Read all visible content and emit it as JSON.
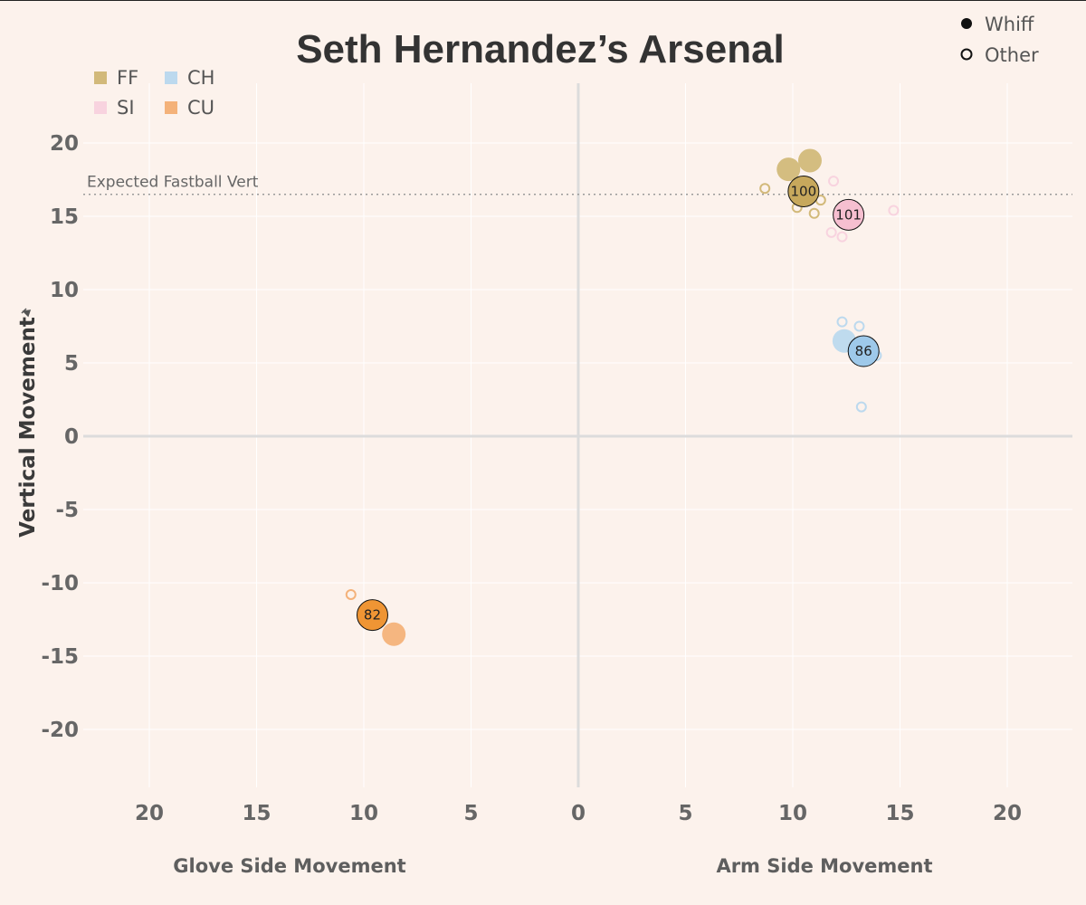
{
  "chart_data": {
    "type": "scatter",
    "title": "Seth Hernandez’s Arsenal",
    "ylabel": "Vertical Movement",
    "xlabel_left": "Glove Side Movement",
    "xlabel_right": "Arm Side Movement",
    "xlim": [
      -23,
      23
    ],
    "ylim": [
      -24,
      24
    ],
    "x_ticks": [
      -20,
      -15,
      -10,
      -5,
      0,
      5,
      10,
      15,
      20
    ],
    "x_tick_labels": [
      "20",
      "15",
      "10",
      "5",
      "0",
      "5",
      "10",
      "15",
      "20"
    ],
    "y_ticks": [
      20,
      15,
      10,
      5,
      0,
      -5,
      -10,
      -15,
      -20
    ],
    "y_tick_labels": [
      "20",
      "15",
      "10",
      "5",
      "0",
      "-5",
      "-10",
      "-15",
      "-20"
    ],
    "grid": true,
    "reference_line": {
      "label": "Expected Fastball Vert",
      "y": 16.5
    },
    "pitch_legend": [
      {
        "code": "FF",
        "color": "#d2b97a"
      },
      {
        "code": "CH",
        "color": "#bcd9ee"
      },
      {
        "code": "SI",
        "color": "#f8d3df"
      },
      {
        "code": "CU",
        "color": "#f4b27a"
      }
    ],
    "result_legend": [
      {
        "label": "Whiff",
        "filled": true
      },
      {
        "label": "Other",
        "filled": false
      }
    ],
    "pitches": [
      {
        "type": "FF",
        "result": "whiff",
        "x": 9.8,
        "y": 18.2
      },
      {
        "type": "FF",
        "result": "whiff",
        "x": 10.8,
        "y": 18.8
      },
      {
        "type": "FF",
        "result": "other",
        "x": 8.7,
        "y": 16.9
      },
      {
        "type": "FF",
        "result": "other",
        "x": 10.2,
        "y": 15.6
      },
      {
        "type": "FF",
        "result": "other",
        "x": 11.0,
        "y": 15.2
      },
      {
        "type": "FF",
        "result": "other",
        "x": 11.3,
        "y": 16.1
      },
      {
        "type": "SI",
        "result": "other",
        "x": 11.9,
        "y": 17.4
      },
      {
        "type": "SI",
        "result": "other",
        "x": 11.8,
        "y": 13.9
      },
      {
        "type": "SI",
        "result": "other",
        "x": 12.3,
        "y": 13.6
      },
      {
        "type": "SI",
        "result": "other",
        "x": 14.7,
        "y": 15.4
      },
      {
        "type": "CH",
        "result": "whiff",
        "x": 12.4,
        "y": 6.5
      },
      {
        "type": "CH",
        "result": "other",
        "x": 12.3,
        "y": 7.8
      },
      {
        "type": "CH",
        "result": "other",
        "x": 13.1,
        "y": 7.5
      },
      {
        "type": "CH",
        "result": "other",
        "x": 13.9,
        "y": 5.5
      },
      {
        "type": "CH",
        "result": "other",
        "x": 13.2,
        "y": 2.0
      },
      {
        "type": "CU",
        "result": "other",
        "x": -10.6,
        "y": -10.8
      },
      {
        "type": "CU",
        "result": "whiff",
        "x": -8.6,
        "y": -13.5
      }
    ],
    "averages": [
      {
        "type": "FF",
        "velo": "100",
        "x": 10.5,
        "y": 16.7,
        "color": "#c7a85c"
      },
      {
        "type": "SI",
        "velo": "101",
        "x": 12.6,
        "y": 15.1,
        "color": "#f6bfd0"
      },
      {
        "type": "CH",
        "velo": "86",
        "x": 13.3,
        "y": 5.8,
        "color": "#9ec9ea"
      },
      {
        "type": "CU",
        "velo": "82",
        "x": -9.6,
        "y": -12.2,
        "color": "#ef9534"
      }
    ]
  }
}
